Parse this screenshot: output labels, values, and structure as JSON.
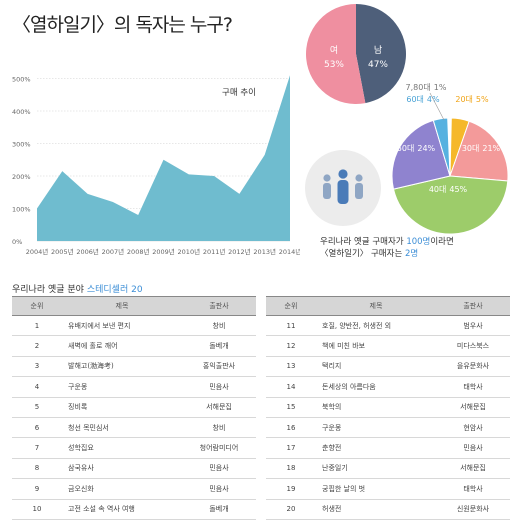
{
  "title": "〈열하일기〉의 독자는 누구?",
  "chart_data": [
    {
      "type": "area",
      "annotation": "구매 추이",
      "x": [
        "2004년",
        "2005년",
        "2006년",
        "2007년",
        "2008년",
        "2009년",
        "2010년",
        "2011년",
        "2012년",
        "2013년",
        "2014년"
      ],
      "values": [
        100,
        215,
        145,
        120,
        80,
        250,
        205,
        200,
        145,
        265,
        510
      ],
      "y_ticks": [
        "0%",
        "100%",
        "200%",
        "300%",
        "400%",
        "500%"
      ],
      "ylim": [
        0,
        520
      ],
      "grid": true
    },
    {
      "type": "pie",
      "slices": [
        {
          "label": "여",
          "value": 53,
          "value_label": "53%",
          "color": "#ef8fa0"
        },
        {
          "label": "남",
          "value": 47,
          "value_label": "47%",
          "color": "#4e5f7a"
        }
      ]
    },
    {
      "type": "pie",
      "slices": [
        {
          "label": "7,80대",
          "value": 1,
          "value_label": "1%",
          "color": "#ffffff"
        },
        {
          "label": "20대",
          "value": 5,
          "value_label": "5%",
          "color": "#f5b82a"
        },
        {
          "label": "30대",
          "value": 21,
          "value_label": "21%",
          "color": "#f39a9a"
        },
        {
          "label": "40대",
          "value": 45,
          "value_label": "45%",
          "color": "#9dcc6a"
        },
        {
          "label": "50대",
          "value": 24,
          "value_label": "24%",
          "color": "#8f83cf"
        },
        {
          "label": "60대",
          "value": 4,
          "value_label": "4%",
          "color": "#56b1e0"
        }
      ]
    }
  ],
  "caption": {
    "line1_a": "우리나라 옛글 구매자가 ",
    "line1_b": "100명",
    "line1_c": "이라면",
    "line2_a": "〈열하일기〉 구매자는 ",
    "line2_b": "2명"
  },
  "list_title": {
    "a": "우리나라 옛글 분야 ",
    "b": "스테디셀러 20"
  },
  "table": {
    "headers": {
      "rank": "순위",
      "title": "제목",
      "publisher": "출판사"
    },
    "left": [
      {
        "rank": "1",
        "title": "유배지에서 보낸 편지",
        "publisher": "창비"
      },
      {
        "rank": "2",
        "title": "새벽에 홀로 깨어",
        "publisher": "돌베개"
      },
      {
        "rank": "3",
        "title": "발해고(渤海考)",
        "publisher": "홍익출판사"
      },
      {
        "rank": "4",
        "title": "구운몽",
        "publisher": "민음사"
      },
      {
        "rank": "5",
        "title": "징비록",
        "publisher": "서해문집"
      },
      {
        "rank": "6",
        "title": "청선 목민심서",
        "publisher": "창비"
      },
      {
        "rank": "7",
        "title": "성학집요",
        "publisher": "청어람미디어"
      },
      {
        "rank": "8",
        "title": "삼국유사",
        "publisher": "민음사"
      },
      {
        "rank": "9",
        "title": "금오신화",
        "publisher": "민음사"
      },
      {
        "rank": "10",
        "title": "고전 소설 속 역사 여행",
        "publisher": "돌베개"
      }
    ],
    "right": [
      {
        "rank": "11",
        "title": "호질, 양반전, 허생전 외",
        "publisher": "범우사"
      },
      {
        "rank": "12",
        "title": "책에 미친 바보",
        "publisher": "미다스북스"
      },
      {
        "rank": "13",
        "title": "택리지",
        "publisher": "을유문화사"
      },
      {
        "rank": "14",
        "title": "돈세상의 아름다움",
        "publisher": "태학사"
      },
      {
        "rank": "15",
        "title": "북학의",
        "publisher": "서해문집"
      },
      {
        "rank": "16",
        "title": "구운몽",
        "publisher": "현암사"
      },
      {
        "rank": "17",
        "title": "춘향전",
        "publisher": "민음사"
      },
      {
        "rank": "18",
        "title": "난중일기",
        "publisher": "서해문집"
      },
      {
        "rank": "19",
        "title": "궁핍한 날의 벗",
        "publisher": "태학사"
      },
      {
        "rank": "20",
        "title": "허생전",
        "publisher": "신원문화사"
      }
    ]
  }
}
